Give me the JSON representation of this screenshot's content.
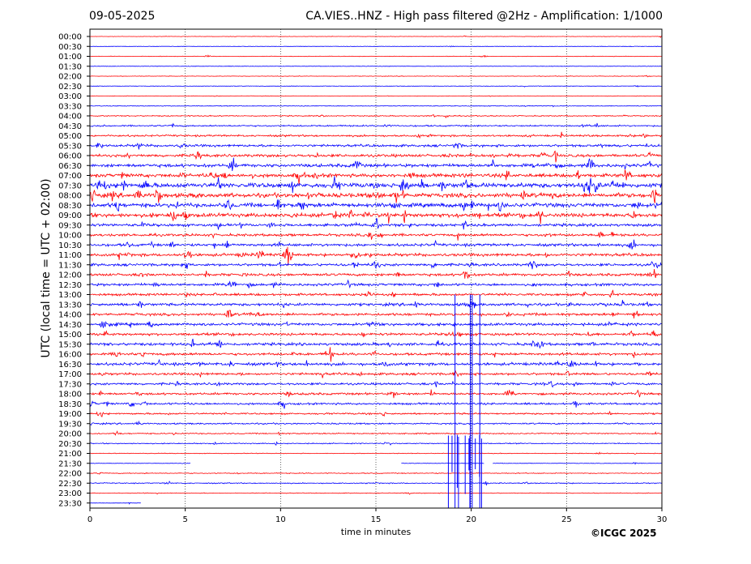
{
  "header": {
    "date": "09-05-2025",
    "title": "CA.VIES..HNZ - High pass filtered @2Hz - Amplification: 1/1000"
  },
  "footer": {
    "copyright": "©ICGC 2025"
  },
  "chart_data": {
    "type": "line",
    "title": "CA.VIES..HNZ - High pass filtered @2Hz - Amplification: 1/1000",
    "xlabel": "time in minutes",
    "ylabel": "UTC (local time = UTC + 02:00)",
    "xlim": [
      0,
      30
    ],
    "x_ticks": [
      "0",
      "5",
      "10",
      "15",
      "20",
      "25",
      "30"
    ],
    "grid_x": true,
    "row_colors": [
      "#ff0000",
      "#0000ff"
    ],
    "rows": [
      {
        "label": "00:00",
        "amplitude": 0.05
      },
      {
        "label": "00:30",
        "amplitude": 0.05
      },
      {
        "label": "01:00",
        "amplitude": 0.06
      },
      {
        "label": "01:30",
        "amplitude": 0.06
      },
      {
        "label": "02:00",
        "amplitude": 0.06
      },
      {
        "label": "02:30",
        "amplitude": 0.06
      },
      {
        "label": "03:00",
        "amplitude": 0.06
      },
      {
        "label": "03:30",
        "amplitude": 0.08
      },
      {
        "label": "04:00",
        "amplitude": 0.12
      },
      {
        "label": "04:30",
        "amplitude": 0.18
      },
      {
        "label": "05:00",
        "amplitude": 0.22
      },
      {
        "label": "05:30",
        "amplitude": 0.28
      },
      {
        "label": "06:00",
        "amplitude": 0.32
      },
      {
        "label": "06:30",
        "amplitude": 0.38
      },
      {
        "label": "07:00",
        "amplitude": 0.42
      },
      {
        "label": "07:30",
        "amplitude": 0.55
      },
      {
        "label": "08:00",
        "amplitude": 0.5
      },
      {
        "label": "08:30",
        "amplitude": 0.48
      },
      {
        "label": "09:00",
        "amplitude": 0.45
      },
      {
        "label": "09:30",
        "amplitude": 0.32
      },
      {
        "label": "10:00",
        "amplitude": 0.3
      },
      {
        "label": "10:30",
        "amplitude": 0.32
      },
      {
        "label": "11:00",
        "amplitude": 0.34
      },
      {
        "label": "11:30",
        "amplitude": 0.3
      },
      {
        "label": "12:00",
        "amplitude": 0.3
      },
      {
        "label": "12:30",
        "amplitude": 0.3
      },
      {
        "label": "13:00",
        "amplitude": 0.28
      },
      {
        "label": "13:30",
        "amplitude": 0.32
      },
      {
        "label": "14:00",
        "amplitude": 0.3
      },
      {
        "label": "14:30",
        "amplitude": 0.32
      },
      {
        "label": "15:00",
        "amplitude": 0.3
      },
      {
        "label": "15:30",
        "amplitude": 0.32
      },
      {
        "label": "16:00",
        "amplitude": 0.3
      },
      {
        "label": "16:30",
        "amplitude": 0.34
      },
      {
        "label": "17:00",
        "amplitude": 0.28
      },
      {
        "label": "17:30",
        "amplitude": 0.26
      },
      {
        "label": "18:00",
        "amplitude": 0.26
      },
      {
        "label": "18:30",
        "amplitude": 0.24
      },
      {
        "label": "19:00",
        "amplitude": 0.2
      },
      {
        "label": "19:30",
        "amplitude": 0.18
      },
      {
        "label": "20:00",
        "amplitude": 0.14
      },
      {
        "label": "20:30",
        "amplitude": 0.12
      },
      {
        "label": "21:00",
        "amplitude": 0.08
      },
      {
        "label": "21:30",
        "amplitude": 0.06
      },
      {
        "label": "22:00",
        "amplitude": 0.1
      },
      {
        "label": "22:30",
        "amplitude": 0.12
      },
      {
        "label": "23:00",
        "amplitude": 0.08
      },
      {
        "label": "23:30",
        "amplitude": 0.05
      }
    ],
    "events": [
      {
        "row": "20:30",
        "x_min": 18.8,
        "x_max": 20.6,
        "note": "large spikes spanning rows 20:30–23:30"
      }
    ],
    "data_gaps": [
      {
        "row": "21:30",
        "x_min": 5.3,
        "x_max": 16.3
      },
      {
        "row": "21:30",
        "x_min": 20.7,
        "x_max": 21.1
      },
      {
        "row": "23:30",
        "x_min": 2.7,
        "x_max": 30
      }
    ]
  }
}
